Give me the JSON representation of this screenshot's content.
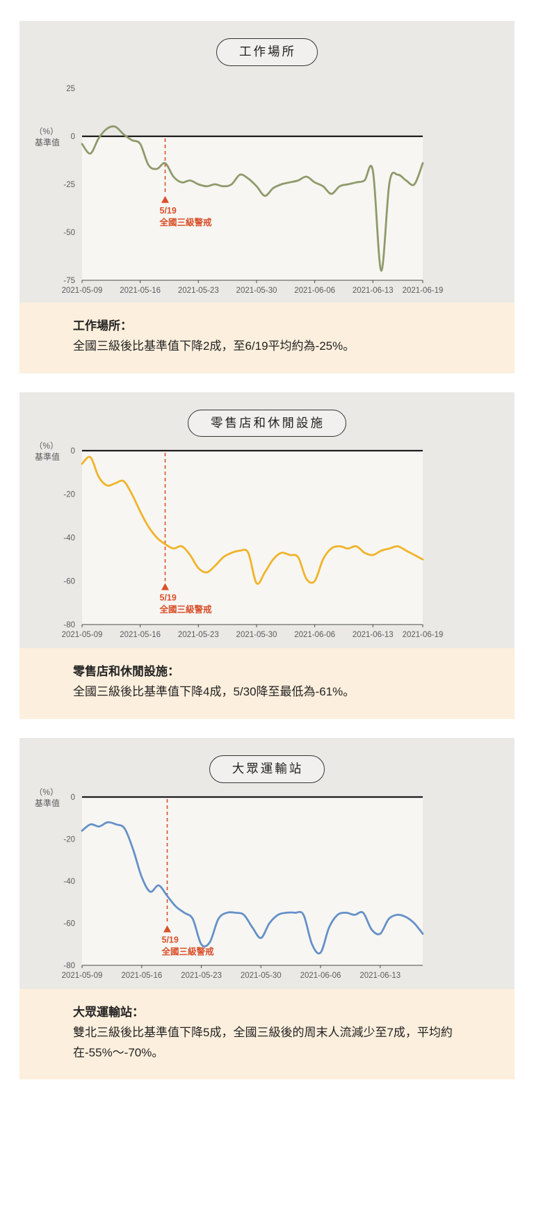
{
  "page": {
    "background": "#ffffff"
  },
  "styles": {
    "card_bg": "#eae9e5",
    "plot_bg": "#f7f6f2",
    "caption_bg": "#fcefdd",
    "axis_line_color": "#1c1c1c",
    "bottom_axis_color": "#4a4a4a",
    "tick_label_color": "#5b5b5b",
    "pill_border_color": "#343434",
    "pill_text_color": "#222222",
    "caption_text_color": "#232323"
  },
  "chart_data": [
    {
      "type": "line",
      "title": "工作場所",
      "ylabel_lines": [
        "（%）",
        "基準值"
      ],
      "ylim": [
        -75,
        25
      ],
      "y_ticks": [
        25,
        0,
        -25,
        -50,
        -75
      ],
      "x_start_date": "2021-05-09",
      "x_tick_labels": [
        "2021-05-09",
        "2021-05-16",
        "2021-05-23",
        "2021-05-30",
        "2021-06-06",
        "2021-06-13",
        "2021-06-19"
      ],
      "x_tick_day_offsets": [
        0,
        7,
        14,
        21,
        28,
        35,
        41
      ],
      "line_color": "#8e9a6b",
      "grid": false,
      "annotation": {
        "date": "5/19",
        "text": "全國三級警戒",
        "day_offset": 10,
        "line_end_value": -30,
        "color": "#d9502b"
      },
      "series": [
        {
          "name": "工作場所",
          "values": [
            -4,
            -9,
            -1,
            4,
            5,
            1,
            -2,
            -4,
            -15,
            -17,
            -14,
            -21,
            -24,
            -23,
            -25,
            -26,
            -25,
            -26,
            -25,
            -20,
            -22,
            -26,
            -31,
            -27,
            -25,
            -24,
            -23,
            -21,
            -24,
            -26,
            -30,
            -26,
            -25,
            -24,
            -23,
            -18,
            -70,
            -24,
            -20,
            -23,
            -25,
            -14
          ]
        }
      ],
      "caption": {
        "heading": "工作場所：",
        "body": "全國三級後比基準值下降2成，至6/19平均約為-25%。"
      }
    },
    {
      "type": "line",
      "title": "零售店和休閒設施",
      "ylabel_lines": [
        "（%）",
        "基準值"
      ],
      "ylim": [
        -80,
        0
      ],
      "y_ticks": [
        0,
        -20,
        -40,
        -60,
        -80
      ],
      "x_start_date": "2021-05-09",
      "x_tick_labels": [
        "2021-05-09",
        "2021-05-16",
        "2021-05-23",
        "2021-05-30",
        "2021-06-06",
        "2021-06-13",
        "2021-06-19"
      ],
      "x_tick_day_offsets": [
        0,
        7,
        14,
        21,
        28,
        35,
        41
      ],
      "line_color": "#f0b32a",
      "grid": false,
      "annotation": {
        "date": "5/19",
        "text": "全國三級警戒",
        "day_offset": 10,
        "line_end_value": -60,
        "color": "#d9502b"
      },
      "series": [
        {
          "name": "零售店和休閒設施",
          "values": [
            -6,
            -3,
            -12,
            -16,
            -15,
            -14,
            -20,
            -28,
            -35,
            -40,
            -43,
            -45,
            -44,
            -48,
            -54,
            -56,
            -53,
            -49,
            -47,
            -46,
            -47,
            -61,
            -56,
            -50,
            -47,
            -48,
            -49,
            -59,
            -60,
            -50,
            -45,
            -44,
            -45,
            -44,
            -47,
            -48,
            -46,
            -45,
            -44,
            -46,
            -48,
            -50
          ]
        }
      ],
      "caption": {
        "heading": "零售店和休閒設施：",
        "body": "全國三級後比基準值下降4成，5/30降至最低為-61%。"
      }
    },
    {
      "type": "line",
      "title": "大眾運輸站",
      "ylabel_lines": [
        "（%）",
        "基準值"
      ],
      "ylim": [
        -80,
        0
      ],
      "y_ticks": [
        0,
        -20,
        -40,
        -60,
        -80
      ],
      "x_start_date": "2021-05-09",
      "x_tick_labels": [
        "2021-05-09",
        "2021-05-16",
        "2021-05-23",
        "2021-05-30",
        "2021-06-06",
        "2021-06-13"
      ],
      "x_tick_day_offsets": [
        0,
        7,
        14,
        21,
        28,
        35
      ],
      "line_color": "#6590c8",
      "grid": false,
      "annotation": {
        "date": "5/19",
        "text": "全國三級警戒",
        "day_offset": 10,
        "line_end_value": -60,
        "color": "#d9502b"
      },
      "series": [
        {
          "name": "大眾運輸站",
          "values": [
            -16,
            -13,
            -14,
            -12,
            -13,
            -15,
            -25,
            -38,
            -45,
            -42,
            -47,
            -52,
            -55,
            -58,
            -70,
            -69,
            -58,
            -55,
            -55,
            -56,
            -62,
            -67,
            -60,
            -56,
            -55,
            -55,
            -56,
            -70,
            -74,
            -62,
            -56,
            -55,
            -56,
            -55,
            -63,
            -65,
            -58,
            -56,
            -57,
            -60,
            -65
          ]
        }
      ],
      "caption": {
        "heading": "大眾運輸站：",
        "body": "雙北三級後比基準值下降5成，全國三級後的周末人流減少至7成，平均約在-55%～-70%。"
      }
    }
  ]
}
